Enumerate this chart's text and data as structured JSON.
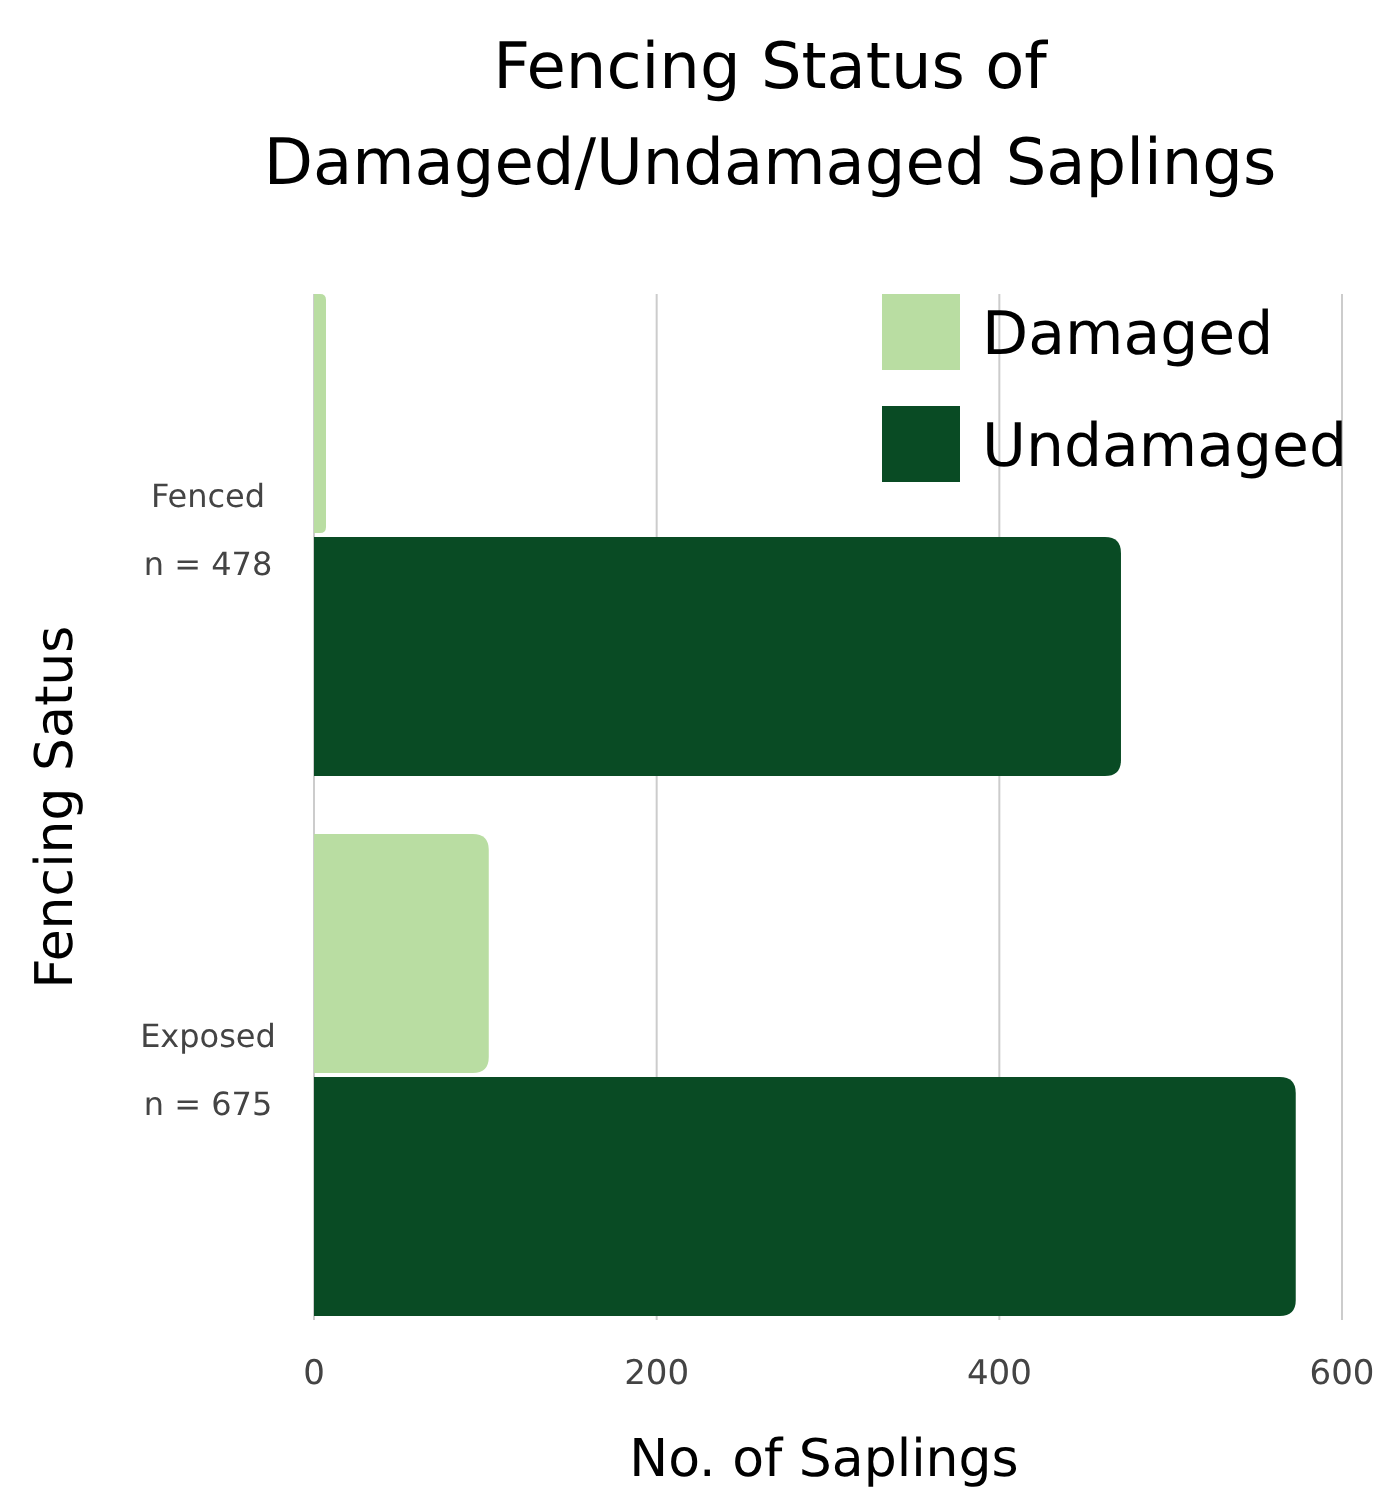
{
  "chart_data": {
    "type": "bar",
    "orientation": "horizontal",
    "title": "Fencing Status of\nDamaged/Undamaged Saplings",
    "xlabel": "No. of Saplings",
    "ylabel": "Fencing Satus",
    "categories": [
      "Fenced\nn = 478",
      "Exposed\nn = 675"
    ],
    "series": [
      {
        "name": "Damaged",
        "color": "#b9dda2",
        "values": [
          7,
          102
        ]
      },
      {
        "name": "Undamaged",
        "color": "#094b24",
        "values": [
          471,
          573
        ]
      }
    ],
    "xlim": [
      0,
      600
    ],
    "xticks": [
      0,
      200,
      400,
      600
    ],
    "grid": "x",
    "legend": "top right"
  }
}
